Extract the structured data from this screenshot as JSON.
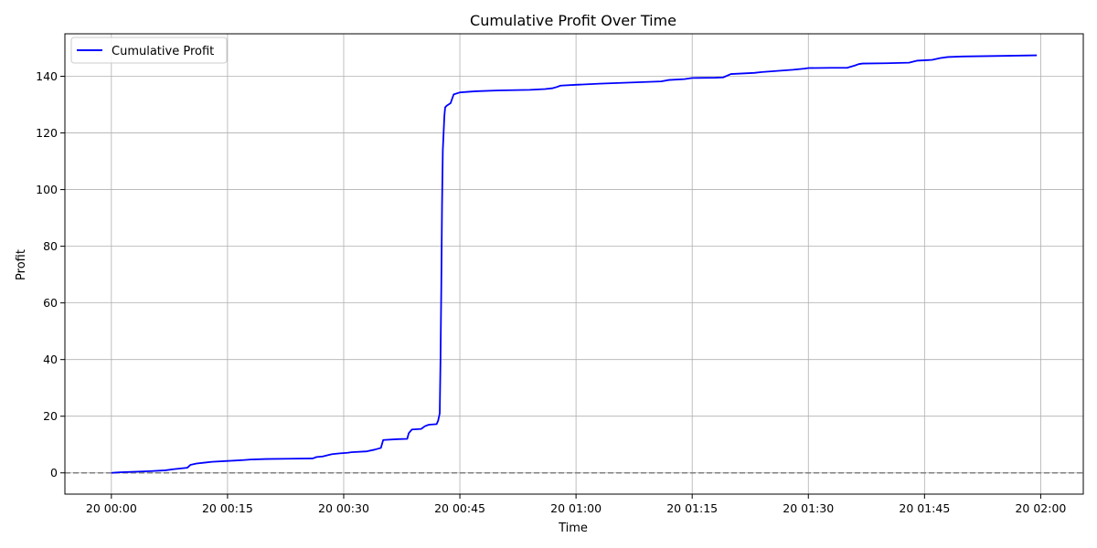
{
  "chart_data": {
    "type": "line",
    "title": "Cumulative Profit Over Time",
    "xlabel": "Time",
    "ylabel": "Profit",
    "x_ticks": [
      "20 00:00",
      "20 00:15",
      "20 00:30",
      "20 00:45",
      "20 01:00",
      "20 01:15",
      "20 01:30",
      "20 01:45",
      "20 02:00"
    ],
    "x_tick_minutes": [
      0,
      15,
      30,
      45,
      60,
      75,
      90,
      105,
      120
    ],
    "xlim_minutes": [
      -6,
      125.5
    ],
    "y_ticks": [
      0,
      20,
      40,
      60,
      80,
      100,
      120,
      140
    ],
    "ylim": [
      -7.5,
      155
    ],
    "grid": true,
    "legend": {
      "position": "top-left",
      "entries": [
        "Cumulative Profit"
      ]
    },
    "reference_line": {
      "y": 0,
      "style": "dashed",
      "color": "#808080"
    },
    "colors": {
      "series": "#0000ff",
      "grid": "#b0b0b0"
    },
    "series": [
      {
        "name": "Cumulative Profit",
        "x_minutes": [
          0,
          1,
          3,
          5,
          7,
          8,
          9.8,
          10.2,
          11,
          12,
          13,
          15,
          17,
          18,
          20,
          23,
          26,
          26.5,
          27.3,
          28,
          28.5,
          29.5,
          30.5,
          31,
          33,
          34,
          34.8,
          35.1,
          37,
          38.2,
          38.4,
          38.8,
          40,
          40.5,
          41,
          42,
          42.2,
          42.4,
          42.5,
          42.6,
          42.7,
          42.8,
          43.0,
          43.1,
          43.3,
          43.8,
          44.2,
          45,
          47,
          50,
          54,
          56,
          57,
          57.5,
          58,
          60,
          63,
          67,
          71,
          72,
          74,
          75,
          78,
          79,
          80,
          83,
          84,
          85,
          86,
          88,
          89.5,
          90,
          93,
          95,
          96,
          96.5,
          97,
          100,
          103,
          104,
          106,
          107,
          108,
          110,
          115,
          119.5
        ],
        "y": [
          0,
          0.2,
          0.4,
          0.6,
          0.9,
          1.3,
          1.8,
          2.8,
          3.3,
          3.6,
          3.9,
          4.2,
          4.5,
          4.7,
          4.9,
          5.0,
          5.1,
          5.6,
          5.8,
          6.3,
          6.6,
          6.9,
          7.1,
          7.3,
          7.6,
          8.2,
          8.8,
          11.6,
          11.9,
          12.0,
          14.0,
          15.3,
          15.5,
          16.5,
          17.0,
          17.2,
          18.5,
          21,
          40,
          65,
          95,
          114,
          126,
          129,
          129.6,
          130.5,
          133.6,
          134.3,
          134.7,
          135.0,
          135.2,
          135.5,
          135.8,
          136.2,
          136.7,
          137.0,
          137.4,
          137.8,
          138.2,
          138.7,
          139.0,
          139.4,
          139.5,
          139.6,
          140.8,
          141.2,
          141.5,
          141.7,
          141.9,
          142.3,
          142.7,
          142.9,
          143.0,
          143.0,
          143.8,
          144.3,
          144.5,
          144.6,
          144.8,
          145.5,
          145.8,
          146.4,
          146.8,
          147.0,
          147.2,
          147.4
        ]
      }
    ]
  }
}
